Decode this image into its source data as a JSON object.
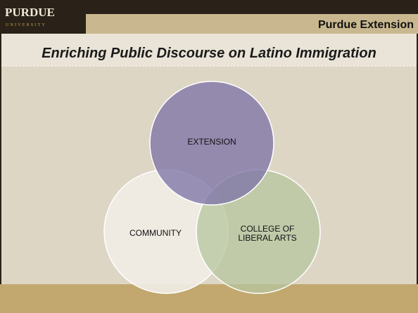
{
  "header": {
    "logo": "PURDUE",
    "logo_sub": "UNIVERSITY",
    "title": "Purdue Extension"
  },
  "slide": {
    "title": "Enriching Public Discourse on Latino Immigration"
  },
  "nodes": [
    {
      "label_lines": [
        "EXTENSION"
      ]
    },
    {
      "label_lines": [
        "COMMUNITY"
      ]
    },
    {
      "label_lines": [
        "COLLEGE OF",
        "LIBERAL ARTS"
      ]
    }
  ]
}
